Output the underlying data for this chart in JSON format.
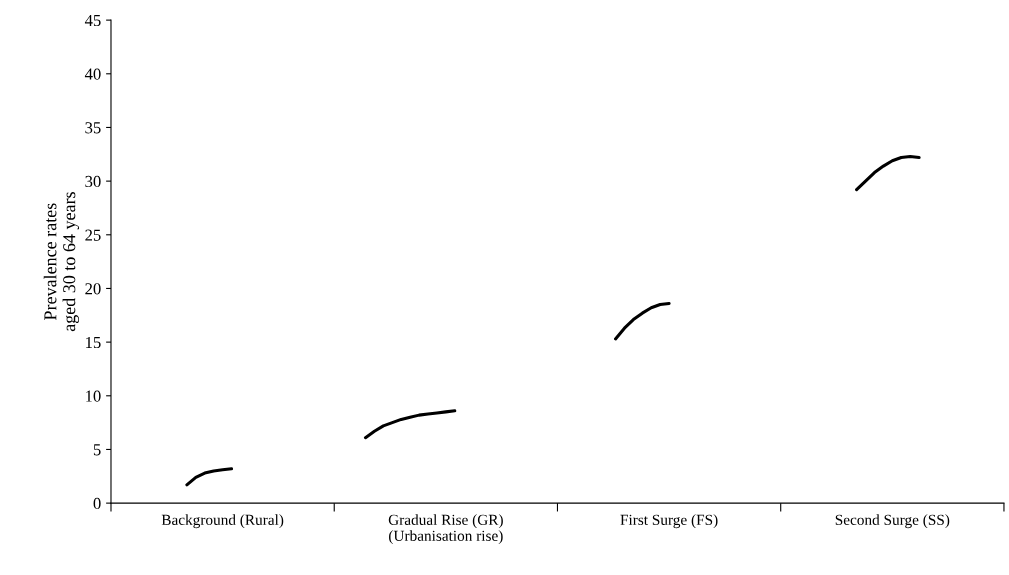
{
  "chart_data": {
    "type": "line",
    "ylabel": "Prevalence rates\naged 30 to 64 years",
    "categories": [
      null,
      null,
      null,
      null,
      null,
      null,
      null,
      null,
      null,
      null,
      null,
      null,
      "Background (Rural)",
      null,
      null,
      null,
      null,
      null,
      null,
      null,
      null,
      null,
      null,
      null,
      null,
      null,
      null,
      null,
      null,
      null,
      null,
      null,
      null,
      null,
      null,
      null,
      null,
      "Gradual Rise (GR)\n(Urbanisation rise)",
      null,
      null,
      null,
      null,
      null,
      null,
      null,
      null,
      null,
      null,
      null,
      null,
      null,
      null,
      null,
      null,
      null,
      null,
      null,
      null,
      null,
      null,
      null,
      null,
      "First Surge (FS)",
      null,
      null,
      null,
      null,
      null,
      null,
      null,
      null,
      null,
      null,
      null,
      null,
      null,
      null,
      null,
      null,
      null,
      null,
      null,
      null,
      null,
      null,
      null,
      null,
      "Second Surge (SS)",
      null,
      null,
      null,
      null,
      null,
      null,
      null,
      null,
      null,
      null,
      null,
      null
    ],
    "ylim": [
      0,
      45
    ],
    "yticks": [
      0,
      5,
      10,
      15,
      20,
      25,
      30,
      35,
      40,
      45
    ],
    "grid": false,
    "legend": false,
    "marker": "none",
    "line_style": "solid",
    "series": [
      {
        "color": "#000000",
        "values": [
          null,
          null,
          null,
          null,
          null,
          null,
          null,
          null,
          1.7,
          2.4,
          2.8,
          3.0,
          3.1,
          3.2,
          null,
          null,
          null,
          null,
          null,
          null,
          null,
          null,
          null,
          null,
          null,
          null,
          null,
          null,
          6.1,
          6.7,
          7.2,
          7.5,
          7.8,
          8.0,
          8.2,
          8.3,
          8.4,
          8.5,
          8.6,
          null,
          null,
          null,
          null,
          null,
          null,
          null,
          null,
          null,
          null,
          null,
          null,
          null,
          null,
          null,
          null,
          null,
          15.3,
          16.3,
          17.1,
          17.7,
          18.2,
          18.5,
          18.6,
          null,
          null,
          null,
          null,
          null,
          null,
          null,
          null,
          null,
          null,
          null,
          null,
          null,
          null,
          null,
          null,
          null,
          null,
          null,
          null,
          29.2,
          30.0,
          30.8,
          31.4,
          31.9,
          32.2,
          32.3,
          32.2,
          null,
          null,
          null,
          null,
          null,
          null,
          null,
          null,
          null
        ]
      }
    ]
  }
}
